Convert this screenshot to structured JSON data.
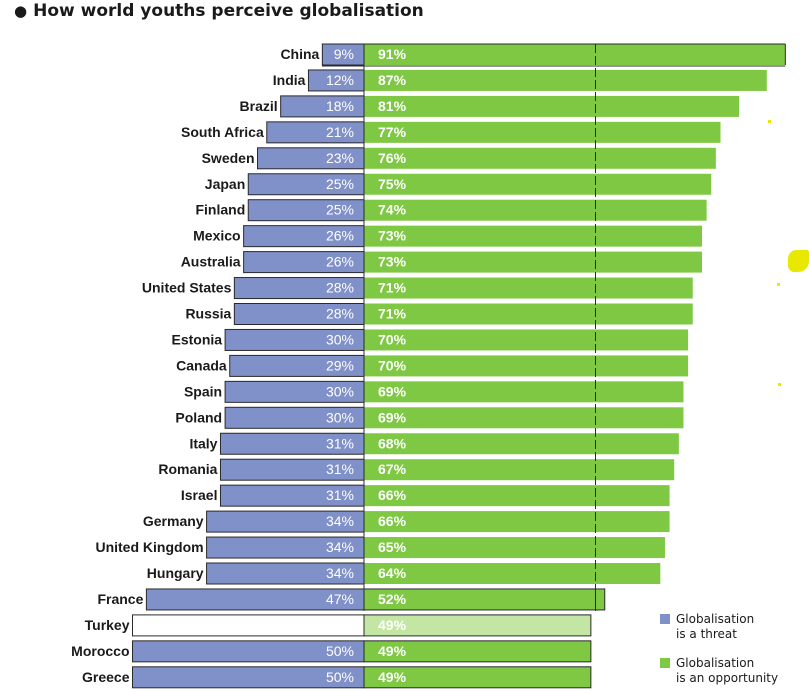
{
  "title": "How world youths perceive globalisation",
  "colors": {
    "threat": "#8090c8",
    "opportunity": "#7ec843",
    "opportunity_light": "#c4e6a4",
    "text": "#1a1a1a"
  },
  "legend": {
    "threat_line1": "Globalisation",
    "threat_line2": "is a threat",
    "opportunity_line1": "Globalisation",
    "opportunity_line2": "is an opportunity"
  },
  "chart_data": {
    "type": "bar",
    "orientation": "horizontal-diverging",
    "title": "How world youths perceive globalisation",
    "categories": [
      "China",
      "India",
      "Brazil",
      "South Africa",
      "Sweden",
      "Japan",
      "Finland",
      "Mexico",
      "Australia",
      "United States",
      "Russia",
      "Estonia",
      "Canada",
      "Spain",
      "Poland",
      "Italy",
      "Romania",
      "Israel",
      "Germany",
      "United Kingdom",
      "Hungary",
      "France",
      "Turkey",
      "Morocco",
      "Greece"
    ],
    "series": [
      {
        "name": "Globalisation is a threat",
        "values": [
          9,
          12,
          18,
          21,
          23,
          25,
          25,
          26,
          26,
          28,
          28,
          30,
          29,
          30,
          30,
          31,
          31,
          31,
          34,
          34,
          34,
          47,
          null,
          50,
          50
        ]
      },
      {
        "name": "Globalisation is an opportunity",
        "values": [
          91,
          87,
          81,
          77,
          76,
          75,
          74,
          73,
          73,
          71,
          71,
          70,
          70,
          69,
          69,
          68,
          67,
          66,
          66,
          65,
          64,
          52,
          49,
          49,
          49
        ]
      }
    ],
    "labels": {
      "threat": [
        "9%",
        "12%",
        "18%",
        "21%",
        "23%",
        "25%",
        "25%",
        "26%",
        "26%",
        "28%",
        "28%",
        "30%",
        "29%",
        "30%",
        "30%",
        "31%",
        "31%",
        "31%",
        "34%",
        "34%",
        "34%",
        "47%",
        "",
        "50%",
        "50%"
      ],
      "opportunity": [
        "91%",
        "87%",
        "81%",
        "77%",
        "76%",
        "75%",
        "74%",
        "73%",
        "73%",
        "71%",
        "71%",
        "70%",
        "70%",
        "69%",
        "69%",
        "68%",
        "67%",
        "66%",
        "66%",
        "65%",
        "64%",
        "52%",
        "49%",
        "49%",
        "49%"
      ]
    },
    "highlighted": [
      "Turkey"
    ],
    "reference_line_value": 50
  }
}
